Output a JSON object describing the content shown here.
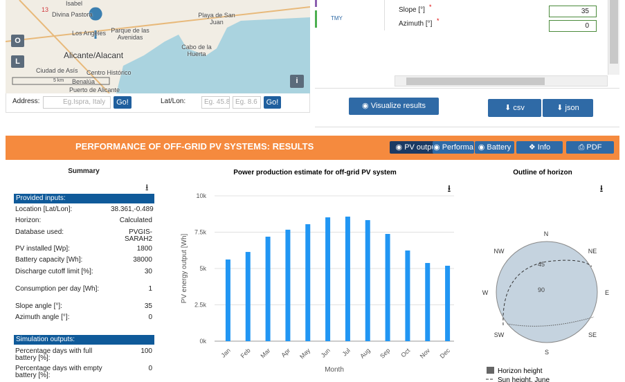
{
  "map": {
    "labels": [
      "Isabel",
      "13",
      "Divina Pastora",
      "Playa de San Juan",
      "Los Angeles",
      "Parque de las Avenidas",
      "Alicante/Alacant",
      "Cabo de la Huerta",
      "Ciudad de Asís",
      "Centro Histórico",
      "Benalúa",
      "Puerto de Alicante"
    ],
    "scale": "5 km",
    "buttons": [
      "O",
      "L",
      "i"
    ]
  },
  "address": {
    "label": "Address:",
    "placeholder": "Eg.Ispra, Italy",
    "go": "Go!",
    "latlon_label": "Lat/Lon:",
    "lat_placeholder": "Eg. 45.8",
    "lon_placeholder": "Eg. 8.6",
    "go2": "Go!"
  },
  "inputs_panel": {
    "tmy": "TMY",
    "slope_label": "Slope [°]",
    "slope_req": "*",
    "slope_value": "35",
    "azimuth_label": "Azimuth [°]",
    "azimuth_req": "*",
    "azimuth_value": "0",
    "visualize": "Visualize results",
    "csv": "csv",
    "json": "json"
  },
  "results": {
    "title": "PERFORMANCE OF OFF-GRID PV SYSTEMS: RESULTS",
    "tabs": [
      "PV outpu",
      "Performa",
      "Battery st",
      "Info",
      "PDF"
    ]
  },
  "summary": {
    "title": "Summary",
    "inputs_header": "Provided inputs:",
    "inputs": [
      [
        "Location [Lat/Lon]:",
        "38.361,-0.489"
      ],
      [
        "Horizon:",
        "Calculated"
      ],
      [
        "Database used:",
        "PVGIS-SARAH2"
      ],
      [
        "PV installed [Wp]:",
        1800
      ],
      [
        "Battery capacity [Wh]:",
        38000
      ],
      [
        "Discharge cutoff limit [%]:",
        30
      ],
      [
        "Consumption per day [Wh]:",
        1
      ],
      [
        "Slope angle [°]:",
        35
      ],
      [
        "Azimuth angle [°]:",
        0
      ]
    ],
    "outputs_header": "Simulation outputs:",
    "outputs": [
      [
        "Percentage days with full battery [%]:",
        100
      ],
      [
        "Percentage days with empty battery [%]:",
        0
      ]
    ]
  },
  "chart_data": {
    "type": "bar",
    "title": "Power production estimate for off-grid PV system",
    "y_label": "PV energy output [Wh]",
    "x_label": "Month",
    "categories": [
      "Jan",
      "Feb",
      "Mar",
      "Apr",
      "May",
      "Jun",
      "Jul",
      "Aug",
      "Sep",
      "Oct",
      "Nov",
      "Dec"
    ],
    "values": [
      5620,
      6140,
      7190,
      7670,
      8050,
      8520,
      8570,
      8330,
      7380,
      6240,
      5380,
      5190
    ],
    "color": "#2196f3",
    "ylim": [
      0,
      10000
    ],
    "yticks": [
      {
        "value": 0,
        "label": "0k"
      },
      {
        "value": 2500,
        "label": "2.5k"
      },
      {
        "value": 5000,
        "label": "5k"
      },
      {
        "value": 7500,
        "label": "7.5k"
      },
      {
        "value": 10000,
        "label": "10k"
      }
    ],
    "grid": true
  },
  "horizon": {
    "title": "Outline of horizon",
    "directions": [
      "N",
      "NE",
      "E",
      "SE",
      "S",
      "SW",
      "W",
      "NW"
    ],
    "rings": [
      "45",
      "90"
    ],
    "legend": [
      "Horizon height",
      "Sun height, June"
    ]
  }
}
